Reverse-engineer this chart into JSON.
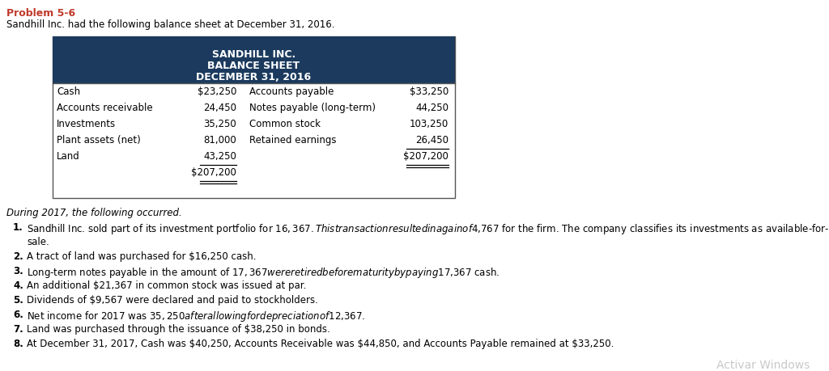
{
  "title_problem": "Problem 5-6",
  "subtitle": "Sandhill Inc. had the following balance sheet at December 31, 2016.",
  "table_header_line1": "SANDHILL INC.",
  "table_header_line2": "BALANCE SHEET",
  "table_header_line3": "DECEMBER 31, 2016",
  "header_bg": "#1b3a5e",
  "header_text_color": "#ffffff",
  "left_labels": [
    "Cash",
    "Accounts receivable",
    "Investments",
    "Plant assets (net)",
    "Land",
    ""
  ],
  "left_values": [
    "$23,250",
    "24,450",
    "35,250",
    "81,000",
    "43,250",
    "$207,200"
  ],
  "right_labels": [
    "Accounts payable",
    "Notes payable (long-term)",
    "Common stock",
    "Retained earnings",
    ""
  ],
  "right_values": [
    "$33,250",
    "44,250",
    "103,250",
    "26,450",
    "$207,200"
  ],
  "during_text": "During 2017, the following occurred.",
  "item1_line1": "Sandhill Inc. sold part of its investment portfolio for $16,367. This transaction resulted in a gain of $4,767 for the firm. The company classifies its investments as available-for-",
  "item1_line2": "sale.",
  "item2": "A tract of land was purchased for $16,250 cash.",
  "item3": "Long-term notes payable in the amount of $17,367 were retired before maturity by paying $17,367 cash.",
  "item4": "An additional $21,367 in common stock was issued at par.",
  "item5": "Dividends of $9,567 were declared and paid to stockholders.",
  "item6": "Net income for 2017 was $35,250 after allowing for depreciation of $12,367.",
  "item7": "Land was purchased through the issuance of $38,250 in bonds.",
  "item8": "At December 31, 2017, Cash was $40,250, Accounts Receivable was $44,850, and Accounts Payable remained at $33,250.",
  "watermark": "Activar Windows",
  "problem_color": "#c0392b",
  "text_color": "#000000",
  "during_color": "#000000",
  "item_color": "#1a5c2a",
  "watermark_color": "#bbbbbb",
  "bg_color": "#ffffff"
}
